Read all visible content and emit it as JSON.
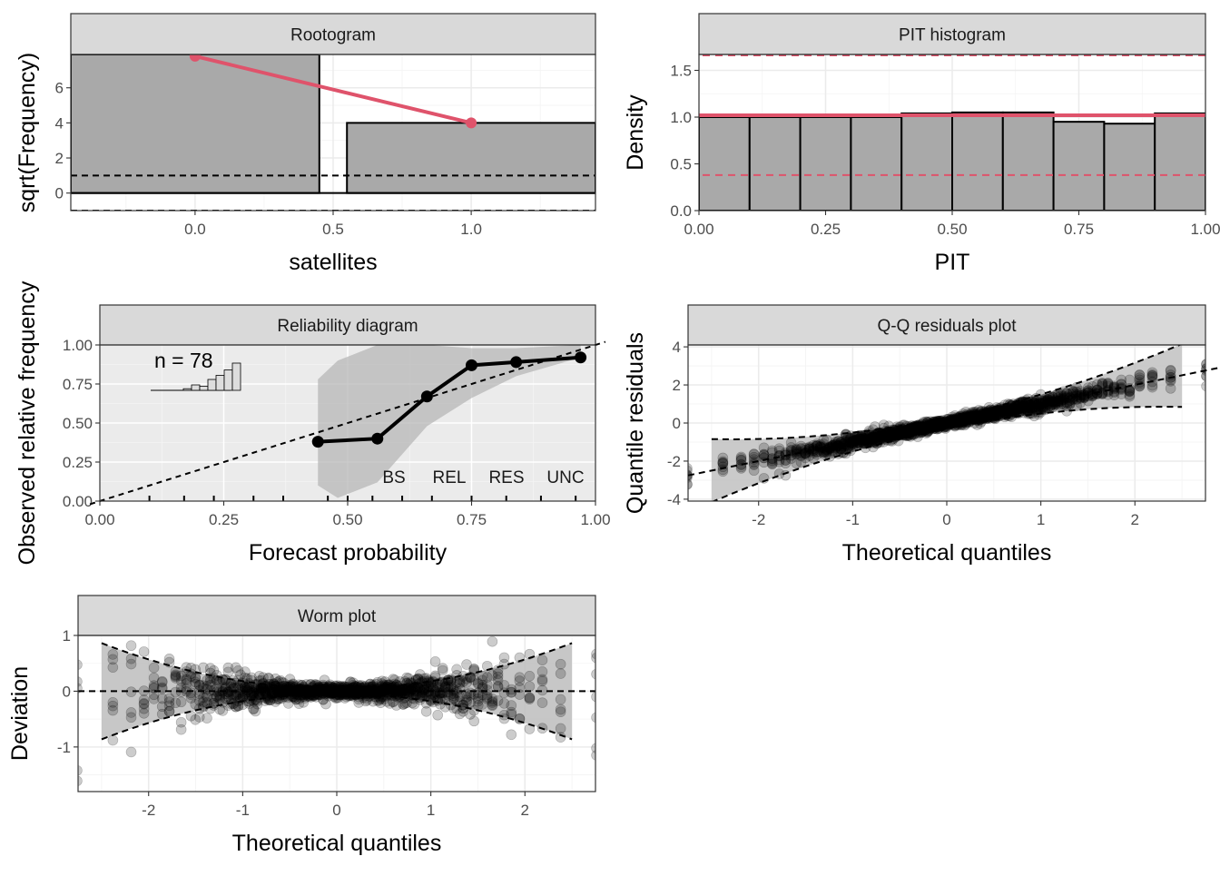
{
  "chart_data": [
    {
      "id": "rootogram",
      "type": "bar",
      "title": "Rootogram",
      "xlabel": "satellites",
      "ylabel": "sqrt(Frequency)",
      "xlim": [
        -0.45,
        1.45
      ],
      "ylim": [
        -1.0,
        7.9
      ],
      "xticks": [
        0.0,
        0.5,
        1.0
      ],
      "xtick_labels": [
        "0.0",
        "0.5",
        "1.0"
      ],
      "yticks": [
        0,
        2,
        4,
        6
      ],
      "ytick_labels": [
        "0",
        "2",
        "4",
        "6"
      ],
      "bars": [
        {
          "x0": -0.45,
          "x1": 0.45,
          "y": 7.9
        },
        {
          "x0": 0.55,
          "x1": 1.45,
          "y": 4.0
        }
      ],
      "expected": {
        "x": [
          0.0,
          1.0
        ],
        "y": [
          7.8,
          4.0
        ],
        "color": "#DF536B"
      },
      "reference_lines": [
        1.0,
        -1.0
      ],
      "colors": {
        "bar_fill": "#A9A9A9",
        "line": "#DF536B"
      }
    },
    {
      "id": "pit",
      "type": "bar",
      "title": "PIT histogram",
      "xlabel": "PIT",
      "ylabel": "Density",
      "xlim": [
        0,
        1
      ],
      "ylim": [
        0,
        1.67
      ],
      "xticks": [
        0,
        0.25,
        0.5,
        0.75,
        1.0
      ],
      "xtick_labels": [
        "0.00",
        "0.25",
        "0.50",
        "0.75",
        "1.00"
      ],
      "yticks": [
        0,
        0.5,
        1.0,
        1.5
      ],
      "ytick_labels": [
        "0.0",
        "0.5",
        "1.0",
        "1.5"
      ],
      "bin_width": 0.1,
      "values": [
        1.0,
        1.0,
        1.0,
        1.0,
        1.04,
        1.05,
        1.05,
        0.95,
        0.93,
        1.04
      ],
      "reference": 1.02,
      "ci": [
        0.38,
        1.66
      ],
      "colors": {
        "bar_fill": "#A9A9A9",
        "line": "#DF536B"
      }
    },
    {
      "id": "reliability",
      "type": "line",
      "title": "Reliability diagram",
      "xlabel": "Forecast probability",
      "ylabel": "Observed relative frequency",
      "xlim": [
        0,
        1
      ],
      "ylim": [
        0,
        1
      ],
      "xticks": [
        0,
        0.25,
        0.5,
        0.75,
        1.0
      ],
      "xtick_labels": [
        "0.00",
        "0.25",
        "0.50",
        "0.75",
        "1.00"
      ],
      "yticks": [
        0,
        0.25,
        0.5,
        0.75,
        1.0
      ],
      "ytick_labels": [
        "0.00",
        "0.25",
        "0.50",
        "0.75",
        "1.00"
      ],
      "points": {
        "x": [
          0.44,
          0.56,
          0.66,
          0.75,
          0.84,
          0.97
        ],
        "y": [
          0.38,
          0.4,
          0.67,
          0.87,
          0.89,
          0.92
        ]
      },
      "band_upper": [
        [
          0.44,
          0.78
        ],
        [
          0.48,
          0.9
        ],
        [
          0.56,
          1.0
        ],
        [
          0.66,
          1.0
        ],
        [
          0.75,
          0.98
        ],
        [
          0.84,
          0.98
        ],
        [
          0.97,
          1.0
        ]
      ],
      "band_lower": [
        [
          0.97,
          0.92
        ],
        [
          0.84,
          0.8
        ],
        [
          0.75,
          0.66
        ],
        [
          0.66,
          0.48
        ],
        [
          0.56,
          0.12
        ],
        [
          0.48,
          0.02
        ],
        [
          0.44,
          0.1
        ]
      ],
      "n_label": "n = 78",
      "score_headers": [
        "BS",
        "REL",
        "RES",
        "UNC"
      ],
      "rug_x": [
        0.1,
        0.17,
        0.23,
        0.31,
        0.37,
        0.46,
        0.5,
        0.55,
        0.61,
        0.67,
        0.75,
        0.82,
        0.89,
        0.96
      ],
      "inset_hist": [
        0.06,
        0.2,
        0.15,
        0.4,
        0.55,
        0.75,
        1.0
      ]
    },
    {
      "id": "qq",
      "type": "scatter",
      "title": "Q-Q residuals plot",
      "xlabel": "Theoretical quantiles",
      "ylabel": "Quantile residuals",
      "xlim": [
        -2.75,
        2.75
      ],
      "ylim": [
        -4.1,
        4.1
      ],
      "xticks": [
        -2,
        -1,
        0,
        1,
        2
      ],
      "xtick_labels": [
        "-2",
        "-1",
        "0",
        "1",
        "2"
      ],
      "yticks": [
        -4,
        -2,
        0,
        2,
        4
      ],
      "ytick_labels": [
        "-4",
        "-2",
        "0",
        "2",
        "4"
      ],
      "reference_line": {
        "slope": 1.0,
        "intercept": 0.0
      },
      "n_points": 173
    },
    {
      "id": "worm",
      "type": "scatter",
      "title": "Worm plot",
      "xlabel": "Theoretical quantiles",
      "ylabel": "Deviation",
      "xlim": [
        -2.75,
        2.75
      ],
      "ylim": [
        -1.8,
        1.0
      ],
      "xticks": [
        -2,
        -1,
        0,
        1,
        2
      ],
      "xtick_labels": [
        "-2",
        "-1",
        "0",
        "1",
        "2"
      ],
      "yticks": [
        -1,
        0,
        1
      ],
      "ytick_labels": [
        "-1",
        "0",
        "1"
      ],
      "n_points": 173
    }
  ]
}
